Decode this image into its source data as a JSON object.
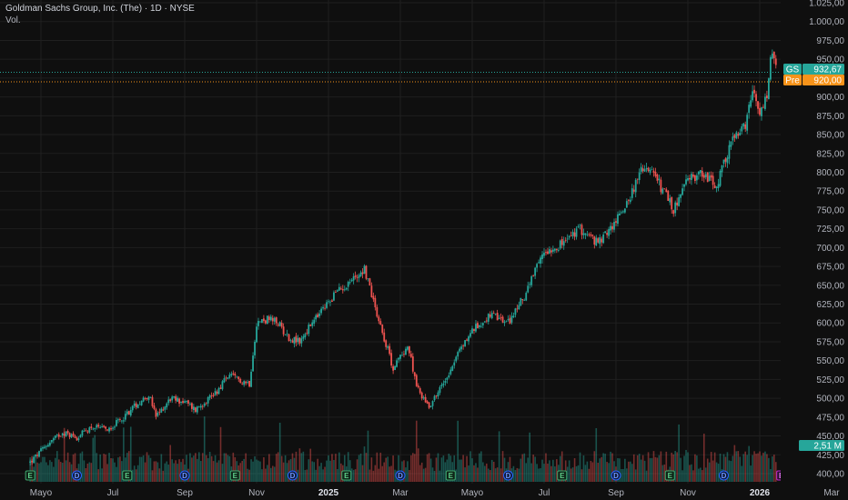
{
  "header": {
    "title": "Goldman Sachs Group, Inc. (The) · 1D · NYSE",
    "volume_label": "Vol."
  },
  "colors": {
    "background": "#0f0f0f",
    "grid": "#1f1f1f",
    "up": "#26a69a",
    "down": "#ef5350",
    "gs_tag": "#26a69a",
    "pre_tag": "#f7931a",
    "vol_tag": "#26a69a",
    "earnings_marker": "#3fa66b",
    "dividend_marker": "#2962ff",
    "next_earnings_marker": "#c026d3"
  },
  "tags": {
    "gs_symbol": "GS",
    "gs_price": "932,67",
    "gs_value": 932.67,
    "pre_symbol": "Pre",
    "pre_price": "920,00",
    "pre_value": 920.0,
    "volume_value": "2,51 M"
  },
  "chart_data": {
    "type": "candlestick",
    "title": "Goldman Sachs Group, Inc. (The) · 1D · NYSE",
    "xlabel": "",
    "ylabel": "",
    "ylim": [
      390,
      1025
    ],
    "y_ticks": [
      400,
      425,
      450,
      475,
      500,
      525,
      550,
      575,
      600,
      625,
      650,
      675,
      700,
      725,
      750,
      775,
      800,
      825,
      850,
      875,
      900,
      925,
      950,
      975,
      1000,
      1025
    ],
    "y_tick_labels": [
      "400,00",
      "425,00",
      "450,00",
      "475,00",
      "500,00",
      "525,00",
      "550,00",
      "575,00",
      "600,00",
      "625,00",
      "650,00",
      "675,00",
      "700,00",
      "725,00",
      "750,00",
      "775,00",
      "800,00",
      "825,00",
      "850,00",
      "875,00",
      "900,00",
      "925,00",
      "950,00",
      "975,00",
      "1.000,00",
      "1.025,00"
    ],
    "x_ticks": [
      {
        "label": "Mayo",
        "month_index": 0,
        "bold": false
      },
      {
        "label": "Jul",
        "month_index": 2,
        "bold": false
      },
      {
        "label": "Sep",
        "month_index": 4,
        "bold": false
      },
      {
        "label": "Nov",
        "month_index": 6,
        "bold": false
      },
      {
        "label": "2025",
        "month_index": 8,
        "bold": true
      },
      {
        "label": "Mar",
        "month_index": 10,
        "bold": false
      },
      {
        "label": "Mayo",
        "month_index": 12,
        "bold": false
      },
      {
        "label": "Jul",
        "month_index": 14,
        "bold": false
      },
      {
        "label": "Sep",
        "month_index": 16,
        "bold": false
      },
      {
        "label": "Nov",
        "month_index": 18,
        "bold": false
      },
      {
        "label": "2026",
        "month_index": 20,
        "bold": true
      },
      {
        "label": "Mar",
        "month_index": 22,
        "bold": false
      }
    ],
    "price_path": [
      [
        -0.3,
        415
      ],
      [
        0.2,
        440
      ],
      [
        0.6,
        455
      ],
      [
        1.0,
        448
      ],
      [
        1.4,
        462
      ],
      [
        1.8,
        458
      ],
      [
        2.2,
        470
      ],
      [
        2.6,
        490
      ],
      [
        3.0,
        505
      ],
      [
        3.2,
        475
      ],
      [
        3.6,
        500
      ],
      [
        4.0,
        495
      ],
      [
        4.3,
        485
      ],
      [
        4.6,
        498
      ],
      [
        4.9,
        510
      ],
      [
        5.2,
        530
      ],
      [
        5.5,
        525
      ],
      [
        5.8,
        520
      ],
      [
        6.0,
        600
      ],
      [
        6.3,
        605
      ],
      [
        6.6,
        600
      ],
      [
        6.9,
        580
      ],
      [
        7.2,
        575
      ],
      [
        7.4,
        590
      ],
      [
        7.8,
        615
      ],
      [
        8.2,
        640
      ],
      [
        8.6,
        655
      ],
      [
        9.0,
        672
      ],
      [
        9.4,
        605
      ],
      [
        9.8,
        540
      ],
      [
        10.2,
        570
      ],
      [
        10.5,
        510
      ],
      [
        10.8,
        490
      ],
      [
        11.2,
        520
      ],
      [
        11.6,
        560
      ],
      [
        12.0,
        590
      ],
      [
        12.5,
        610
      ],
      [
        13.0,
        600
      ],
      [
        13.5,
        640
      ],
      [
        14.0,
        695
      ],
      [
        14.5,
        705
      ],
      [
        15.0,
        725
      ],
      [
        15.5,
        705
      ],
      [
        16.0,
        735
      ],
      [
        16.4,
        770
      ],
      [
        16.8,
        810
      ],
      [
        17.2,
        785
      ],
      [
        17.6,
        750
      ],
      [
        18.0,
        790
      ],
      [
        18.4,
        800
      ],
      [
        18.8,
        780
      ],
      [
        19.2,
        840
      ],
      [
        19.6,
        860
      ],
      [
        19.8,
        905
      ],
      [
        20.0,
        875
      ],
      [
        20.2,
        900
      ],
      [
        20.3,
        955
      ],
      [
        20.5,
        935
      ]
    ],
    "events": [
      {
        "type": "E",
        "month_index": -0.3
      },
      {
        "type": "D",
        "month_index": 1.0
      },
      {
        "type": "E",
        "month_index": 2.4
      },
      {
        "type": "D",
        "month_index": 4.0
      },
      {
        "type": "E",
        "month_index": 5.4
      },
      {
        "type": "D",
        "month_index": 7.0
      },
      {
        "type": "E",
        "month_index": 8.5
      },
      {
        "type": "D",
        "month_index": 10.0
      },
      {
        "type": "E",
        "month_index": 11.4
      },
      {
        "type": "D",
        "month_index": 13.0
      },
      {
        "type": "E",
        "month_index": 14.5
      },
      {
        "type": "D",
        "month_index": 16.0
      },
      {
        "type": "E",
        "month_index": 17.5
      },
      {
        "type": "D",
        "month_index": 19.0
      },
      {
        "type": "E",
        "month_index": 20.6,
        "next": true
      }
    ],
    "current_price": 932.67,
    "premarket_price": 920.0
  }
}
